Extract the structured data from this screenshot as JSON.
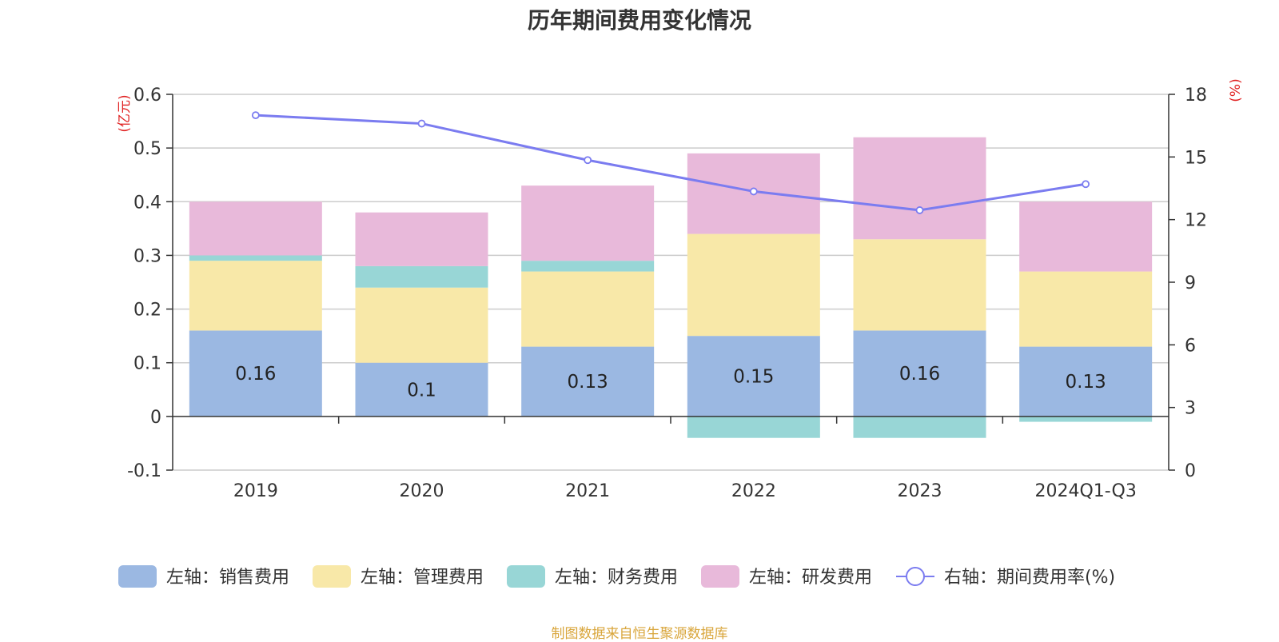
{
  "title": "历年期间费用变化情况",
  "source": "制图数据来自恒生聚源数据库",
  "chart_data": {
    "type": "bar",
    "stacked": true,
    "title": "历年期间费用变化情况",
    "categories": [
      "2019",
      "2020",
      "2021",
      "2022",
      "2023",
      "2024Q1-Q3"
    ],
    "left_axis": {
      "unit": "(亿元)",
      "ylim": [
        -0.1,
        0.6
      ],
      "ticks": [
        "-0.1",
        "0",
        "0.1",
        "0.2",
        "0.3",
        "0.4",
        "0.5",
        "0.6"
      ]
    },
    "right_axis": {
      "unit": "(%)",
      "ylim": [
        0,
        18
      ],
      "ticks": [
        "0",
        "3",
        "6",
        "9",
        "12",
        "15",
        "18"
      ]
    },
    "series": [
      {
        "name": "左轴：销售费用",
        "axis": "left",
        "type": "bar",
        "color": "#9bb8e2",
        "values": [
          0.16,
          0.1,
          0.13,
          0.15,
          0.16,
          0.13
        ],
        "labels": [
          "0.16",
          "0.1",
          "0.13",
          "0.15",
          "0.16",
          "0.13"
        ]
      },
      {
        "name": "左轴：管理费用",
        "axis": "left",
        "type": "bar",
        "color": "#f8e8a8",
        "values": [
          0.13,
          0.14,
          0.14,
          0.19,
          0.17,
          0.14
        ]
      },
      {
        "name": "左轴：财务费用",
        "axis": "left",
        "type": "bar",
        "color": "#98d6d6",
        "values": [
          0.01,
          0.04,
          0.02,
          -0.04,
          -0.04,
          -0.01
        ]
      },
      {
        "name": "左轴：研发费用",
        "axis": "left",
        "type": "bar",
        "color": "#e8b9da",
        "values": [
          0.1,
          0.1,
          0.14,
          0.15,
          0.19,
          0.13
        ]
      },
      {
        "name": "右轴：期间费用率(%)",
        "axis": "right",
        "type": "line",
        "color": "#7b7cf0",
        "values": [
          17.0,
          16.6,
          14.85,
          13.35,
          12.45,
          13.7
        ]
      }
    ],
    "grid": true,
    "legend_position": "bottom"
  }
}
